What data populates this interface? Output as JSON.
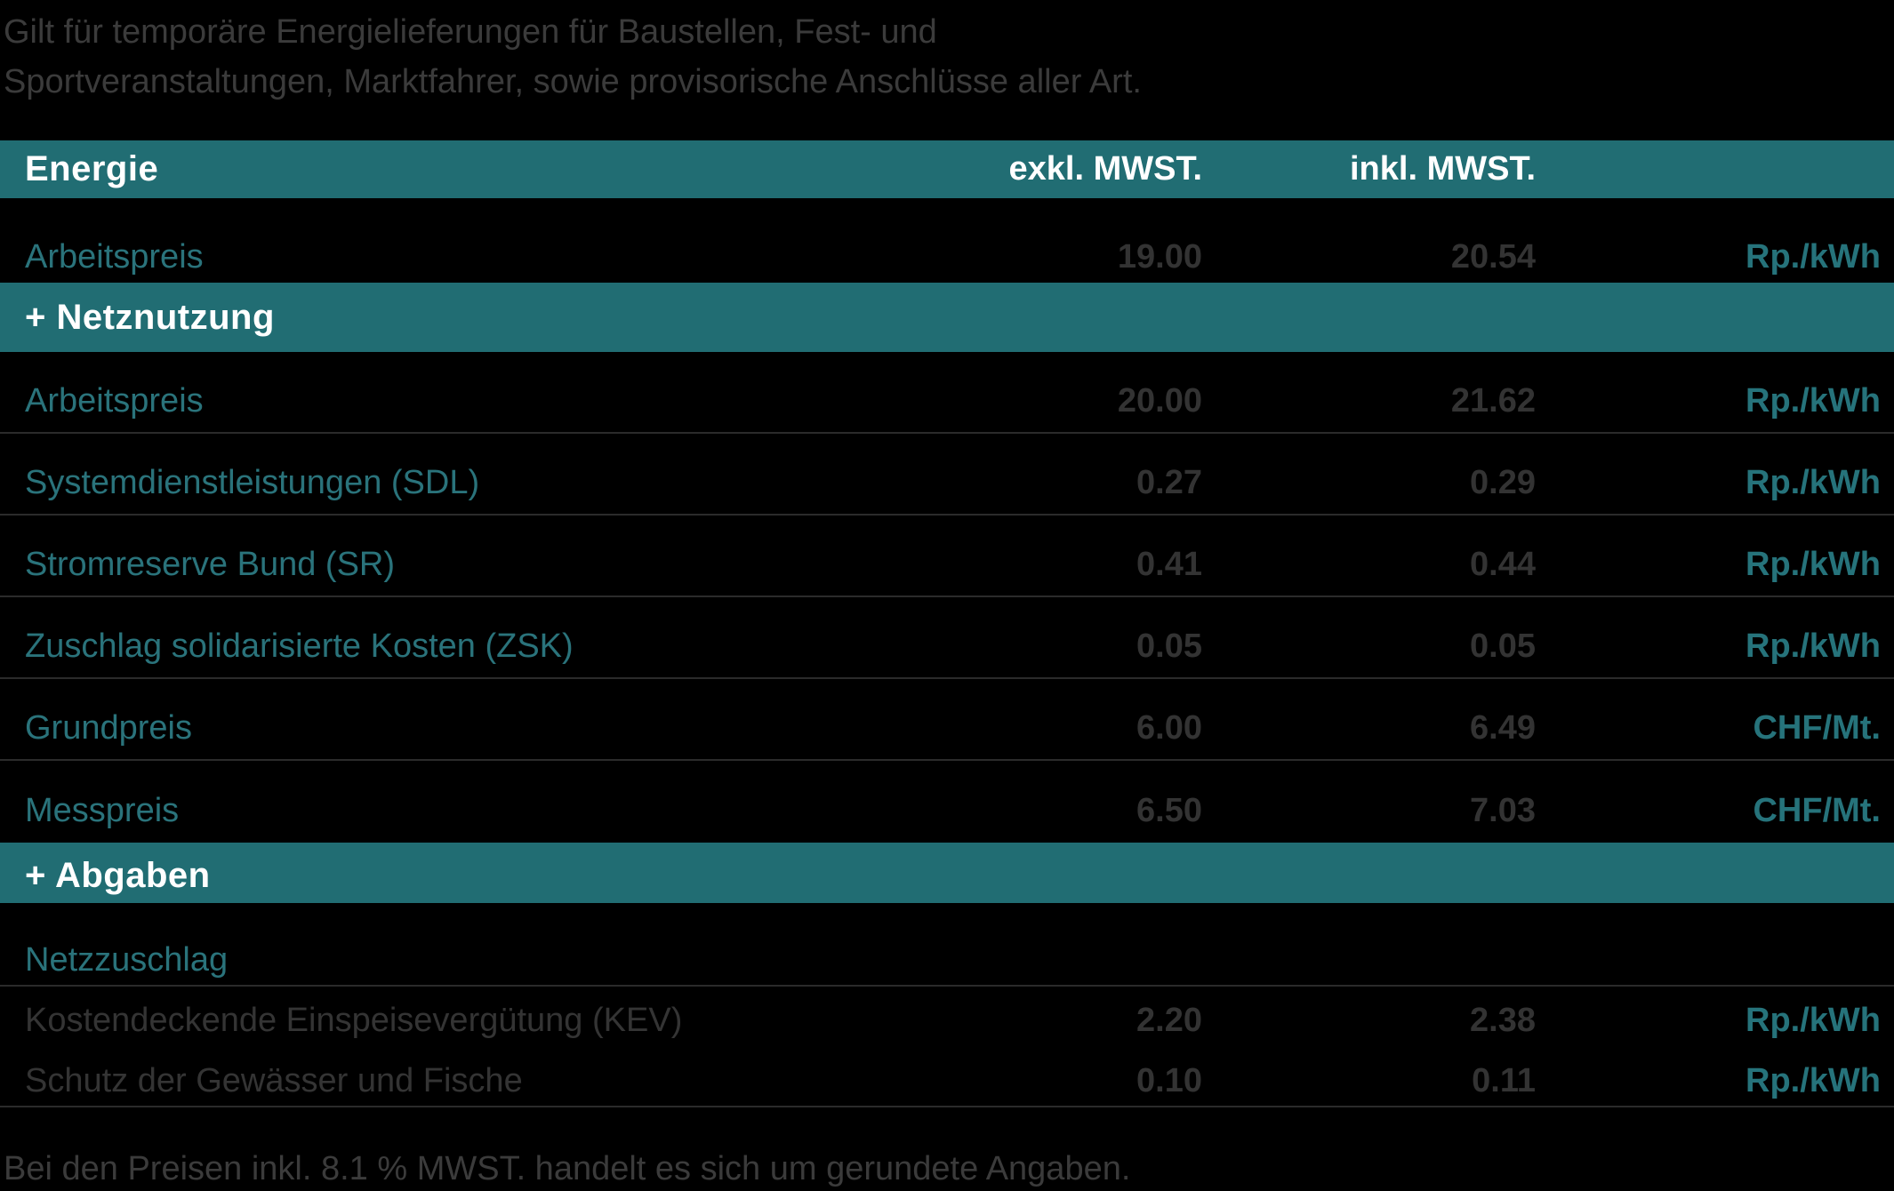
{
  "intro": {
    "line1": "Gilt für temporäre Energielieferungen für Baustellen, Fest- und",
    "line2": "Sportveranstaltungen, Marktfahrer, sowie provisorische Anschlüsse aller Art."
  },
  "table": {
    "columns": {
      "excl": "exkl. MWST.",
      "incl": "inkl. MWST."
    },
    "sections": [
      {
        "title": "Energie",
        "rows": [
          {
            "label": "Arbeitspreis",
            "excl": "19.00",
            "incl": "20.54",
            "unit": "Rp./kWh"
          }
        ]
      },
      {
        "title": "+ Netznutzung",
        "rows": [
          {
            "label": "Arbeitspreis",
            "excl": "20.00",
            "incl": "21.62",
            "unit": "Rp./kWh"
          },
          {
            "label": "Systemdienstleistungen (SDL)",
            "excl": "0.27",
            "incl": "0.29",
            "unit": "Rp./kWh"
          },
          {
            "label": "Stromreserve Bund (SR)",
            "excl": "0.41",
            "incl": "0.44",
            "unit": "Rp./kWh"
          },
          {
            "label": "Zuschlag solidarisierte Kosten (ZSK)",
            "excl": "0.05",
            "incl": "0.05",
            "unit": "Rp./kWh"
          },
          {
            "label": "Grundpreis",
            "excl": "6.00",
            "incl": "6.49",
            "unit": "CHF/Mt."
          },
          {
            "label": "Messpreis",
            "excl": "6.50",
            "incl": "7.03",
            "unit": "CHF/Mt."
          }
        ]
      },
      {
        "title": "+ Abgaben",
        "subheader": "Netzzuschlag",
        "rows": [
          {
            "label": "Kostendeckende Einspeisevergütung (KEV)",
            "excl": "2.20",
            "incl": "2.38",
            "unit": "Rp./kWh"
          },
          {
            "label": "Schutz der Gewässer und Fische",
            "excl": "0.10",
            "incl": "0.11",
            "unit": "Rp./kWh"
          }
        ]
      }
    ],
    "footnote": "Bei den Preisen inkl. 8.1 % MWST. handelt es sich um gerundete Angaben."
  },
  "colors": {
    "accent_teal": "#216d73",
    "label_teal": "#2a737b",
    "value_gray": "#333333",
    "note_gray": "#3b3b3b",
    "divider": "#2b2b2b",
    "header_text": "#ffffff",
    "background": "#000000"
  }
}
